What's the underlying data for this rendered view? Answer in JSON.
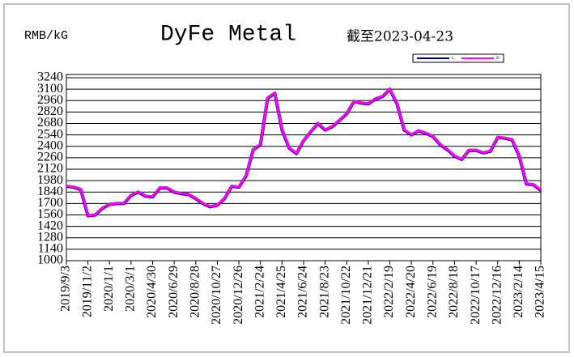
{
  "chart_data": {
    "type": "line",
    "title": "DyFe Metal",
    "subtitle": "截至2023-04-23",
    "y_label": "RMB/kG",
    "x": [
      "2019/9/3",
      "2019/9/23",
      "2019/10/13",
      "2019/11/2",
      "2019/11/22",
      "2019/12/12",
      "2020/1/1",
      "2020/1/21",
      "2020/2/10",
      "2020/3/1",
      "2020/3/21",
      "2020/4/10",
      "2020/4/30",
      "2020/5/20",
      "2020/6/9",
      "2020/6/29",
      "2020/7/19",
      "2020/8/8",
      "2020/8/28",
      "2020/9/17",
      "2020/10/7",
      "2020/10/27",
      "2020/11/16",
      "2020/12/6",
      "2020/12/26",
      "2021/1/15",
      "2021/2/4",
      "2021/2/24",
      "2021/3/16",
      "2021/4/5",
      "2021/4/25",
      "2021/5/15",
      "2021/6/4",
      "2021/6/24",
      "2021/7/14",
      "2021/8/3",
      "2021/8/23",
      "2021/9/12",
      "2021/10/2",
      "2021/10/22",
      "2021/11/11",
      "2021/12/1",
      "2021/12/21",
      "2022/1/10",
      "2022/1/30",
      "2022/2/19",
      "2022/3/11",
      "2022/3/31",
      "2022/4/20",
      "2022/5/10",
      "2022/5/30",
      "2022/6/19",
      "2022/7/9",
      "2022/7/29",
      "2022/8/18",
      "2022/9/7",
      "2022/9/27",
      "2022/10/17",
      "2022/11/6",
      "2022/11/26",
      "2022/12/16",
      "2023/1/5",
      "2023/1/25",
      "2023/2/14",
      "2023/3/6",
      "2023/3/26",
      "2023/4/15"
    ],
    "series": [
      {
        "name": "ㄴ",
        "color": "#000080",
        "values": [
          1910,
          1900,
          1870,
          1550,
          1560,
          1640,
          1690,
          1700,
          1700,
          1800,
          1840,
          1790,
          1780,
          1890,
          1890,
          1840,
          1820,
          1810,
          1760,
          1700,
          1660,
          1680,
          1760,
          1910,
          1900,
          2040,
          2360,
          2420,
          2990,
          3050,
          2600,
          2380,
          2310,
          2470,
          2580,
          2680,
          2600,
          2640,
          2720,
          2800,
          2950,
          2930,
          2920,
          2980,
          3010,
          3100,
          2920,
          2600,
          2540,
          2590,
          2560,
          2520,
          2420,
          2360,
          2280,
          2240,
          2350,
          2350,
          2320,
          2340,
          2510,
          2500,
          2480,
          2280,
          1940,
          1930,
          1860
        ]
      },
      {
        "name": "ㄹ",
        "color": "#ff00ff",
        "values": [
          1915,
          1905,
          1875,
          1555,
          1565,
          1645,
          1695,
          1705,
          1705,
          1805,
          1845,
          1795,
          1785,
          1895,
          1895,
          1845,
          1825,
          1815,
          1765,
          1705,
          1665,
          1685,
          1765,
          1915,
          1905,
          2045,
          2365,
          2425,
          2995,
          3055,
          2605,
          2385,
          2315,
          2475,
          2585,
          2685,
          2605,
          2645,
          2725,
          2805,
          2955,
          2935,
          2925,
          2985,
          3015,
          3105,
          2925,
          2605,
          2545,
          2595,
          2565,
          2525,
          2425,
          2365,
          2285,
          2245,
          2355,
          2355,
          2325,
          2345,
          2515,
          2505,
          2485,
          2285,
          1945,
          1935,
          1865
        ]
      }
    ],
    "xlim": [
      "2019/9/3",
      "2023/4/15"
    ],
    "xticks": [
      "2019/9/3",
      "2019/11/2",
      "2020/1/1",
      "2020/3/1",
      "2020/4/30",
      "2020/6/29",
      "2020/8/28",
      "2020/10/27",
      "2020/12/26",
      "2021/2/24",
      "2021/4/25",
      "2021/6/24",
      "2021/8/23",
      "2021/10/22",
      "2021/12/21",
      "2022/2/19",
      "2022/4/20",
      "2022/6/19",
      "2022/8/18",
      "2022/10/17",
      "2022/12/16",
      "2023/2/14",
      "2023/4/15"
    ],
    "ylim": [
      1000,
      3240
    ],
    "yticks": [
      1000,
      1140,
      1280,
      1420,
      1560,
      1700,
      1840,
      1980,
      2120,
      2260,
      2400,
      2540,
      2680,
      2820,
      2960,
      3100,
      3240
    ],
    "grid": true
  }
}
